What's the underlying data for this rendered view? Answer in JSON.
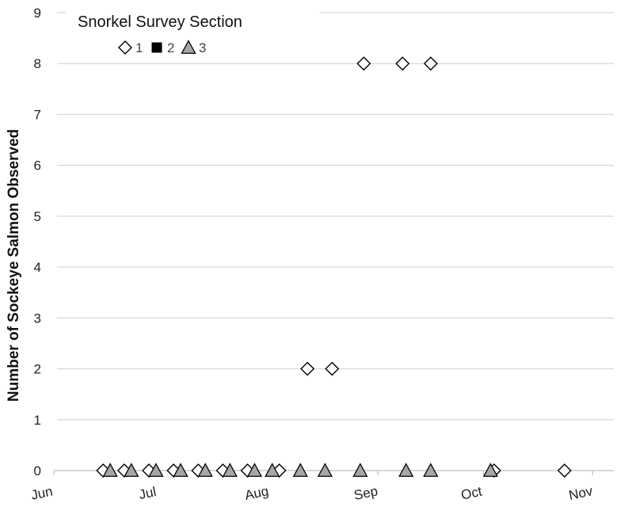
{
  "chart_data": {
    "type": "scatter",
    "title": "",
    "xlabel": "",
    "ylabel": "Number of Sockeye Salmon Observed",
    "ylim": [
      0,
      9
    ],
    "y_ticks": [
      "0",
      "1",
      "2",
      "3",
      "4",
      "5",
      "6",
      "7",
      "8",
      "9"
    ],
    "xlim": [
      "2017-06-01",
      "2017-11-07"
    ],
    "x_ticks": [
      {
        "date": "2017-06-01",
        "label": "Jun"
      },
      {
        "date": "2017-07-01",
        "label": "Jul"
      },
      {
        "date": "2017-08-01",
        "label": "Aug"
      },
      {
        "date": "2017-09-01",
        "label": "Sep"
      },
      {
        "date": "2017-10-01",
        "label": "Oct"
      },
      {
        "date": "2017-11-01",
        "label": "Nov"
      }
    ],
    "grid": "horizontal",
    "legend": {
      "title": "Snorkel Survey Section",
      "placement": "top-left",
      "entries": [
        {
          "label": "1",
          "marker": "diamond-open",
          "color": "#000000"
        },
        {
          "label": "2",
          "marker": "square-filled",
          "color": "#000000"
        },
        {
          "label": "3",
          "marker": "triangle-gray",
          "color": "#a6a6a6"
        }
      ]
    },
    "series": [
      {
        "name": "1",
        "marker": "diamond-open",
        "points": [
          {
            "x": "2017-06-15",
            "y": 0
          },
          {
            "x": "2017-06-21",
            "y": 0
          },
          {
            "x": "2017-06-28",
            "y": 0
          },
          {
            "x": "2017-07-05",
            "y": 0
          },
          {
            "x": "2017-07-12",
            "y": 0
          },
          {
            "x": "2017-07-19",
            "y": 0
          },
          {
            "x": "2017-07-26",
            "y": 0
          },
          {
            "x": "2017-08-04",
            "y": 0
          },
          {
            "x": "2017-08-12",
            "y": 2
          },
          {
            "x": "2017-08-19",
            "y": 2
          },
          {
            "x": "2017-08-28",
            "y": 8
          },
          {
            "x": "2017-09-08",
            "y": 8
          },
          {
            "x": "2017-09-16",
            "y": 8
          },
          {
            "x": "2017-10-04",
            "y": 0
          },
          {
            "x": "2017-10-24",
            "y": 0
          }
        ]
      },
      {
        "name": "2",
        "marker": "square-filled",
        "points": []
      },
      {
        "name": "3",
        "marker": "triangle-gray",
        "points": [
          {
            "x": "2017-06-17",
            "y": 0
          },
          {
            "x": "2017-06-23",
            "y": 0
          },
          {
            "x": "2017-06-30",
            "y": 0
          },
          {
            "x": "2017-07-07",
            "y": 0
          },
          {
            "x": "2017-07-14",
            "y": 0
          },
          {
            "x": "2017-07-21",
            "y": 0
          },
          {
            "x": "2017-07-28",
            "y": 0
          },
          {
            "x": "2017-08-02",
            "y": 0
          },
          {
            "x": "2017-08-10",
            "y": 0
          },
          {
            "x": "2017-08-17",
            "y": 0
          },
          {
            "x": "2017-08-27",
            "y": 0
          },
          {
            "x": "2017-09-09",
            "y": 0
          },
          {
            "x": "2017-09-16",
            "y": 0
          },
          {
            "x": "2017-10-03",
            "y": 0
          }
        ]
      }
    ]
  }
}
